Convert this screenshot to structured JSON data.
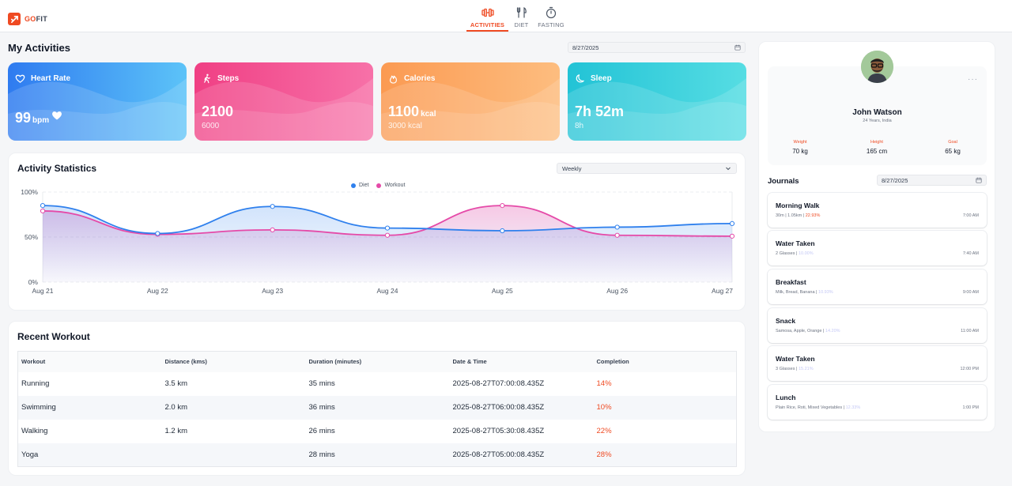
{
  "app": {
    "brand_prefix": "GO",
    "brand_suffix": "FIT"
  },
  "nav": {
    "tabs": [
      {
        "label": "ACTIVITIES",
        "icon": "dumbbell-icon",
        "active": true
      },
      {
        "label": "DIET",
        "icon": "fork-knife-icon",
        "active": false
      },
      {
        "label": "FASTING",
        "icon": "stopwatch-icon",
        "active": false
      }
    ]
  },
  "main": {
    "title": "My Activities",
    "date": "8/27/2025",
    "cards": [
      {
        "title": "Heart Rate",
        "value": "99",
        "unit": "bpm",
        "icon": "heart-outline-icon",
        "color": "#3b8ef5"
      },
      {
        "title": "Steps",
        "value": "2100",
        "sub": "6000",
        "icon": "walking-icon",
        "color": "#f1468b"
      },
      {
        "title": "Calories",
        "value": "1100",
        "unit": "kcal",
        "sub": "3000 kcal",
        "icon": "flame-icon",
        "color": "#fb9e5b"
      },
      {
        "title": "Sleep",
        "value": "7h 52m",
        "sub": "8h",
        "icon": "moon-icon",
        "color": "#26c7d8"
      }
    ]
  },
  "activity": {
    "title": "Activity Statistics",
    "period": "Weekly"
  },
  "chart_data": {
    "type": "area",
    "x": [
      "Aug 21",
      "Aug 22",
      "Aug 23",
      "Aug 24",
      "Aug 25",
      "Aug 26",
      "Aug 27"
    ],
    "y_ticks": [
      "100%",
      "50%",
      "0%"
    ],
    "ylim": [
      0,
      100
    ],
    "series": [
      {
        "name": "Diet",
        "color": "#2f80ed",
        "values": [
          85,
          54,
          84,
          60,
          57,
          61,
          65
        ]
      },
      {
        "name": "Workout",
        "color": "#e54aa8",
        "values": [
          79,
          53,
          58,
          52,
          85,
          52,
          51
        ]
      }
    ],
    "legend": "top-center",
    "grid": true
  },
  "workouts": {
    "title": "Recent Workout",
    "columns": [
      "Workout",
      "Distance (kms)",
      "Duration (minutes)",
      "Date & Time",
      "Completion"
    ],
    "rows": [
      [
        "Running",
        "3.5 km",
        "35 mins",
        "2025-08-27T07:00:08.435Z",
        "14%"
      ],
      [
        "Swimming",
        "2.0 km",
        "36 mins",
        "2025-08-27T06:00:08.435Z",
        "10%"
      ],
      [
        "Walking",
        "1.2 km",
        "26 mins",
        "2025-08-27T05:30:08.435Z",
        "22%"
      ],
      [
        "Yoga",
        "",
        "28 mins",
        "2025-08-27T05:00:08.435Z",
        "28%"
      ]
    ]
  },
  "profile": {
    "name": "John Watson",
    "meta": "24 Years, India",
    "more": "···",
    "stats": [
      {
        "label": "Weight",
        "value": "70 kg"
      },
      {
        "label": "Height",
        "value": "165 cm"
      },
      {
        "label": "Goal",
        "value": "65 kg"
      }
    ]
  },
  "journals": {
    "title": "Journals",
    "date": "8/27/2025",
    "items": [
      {
        "title": "Morning Walk",
        "detail": "30m | 1.05km | ",
        "highlight": "22.93%",
        "hl_style": "orange",
        "time": "7:00 AM"
      },
      {
        "title": "Water Taken",
        "detail": "2 Glasses | ",
        "highlight": "10.00%",
        "hl_style": "lavender",
        "time": "7:40 AM"
      },
      {
        "title": "Breakfast",
        "detail": "Milk, Bread, Banana | ",
        "highlight": "10.93%",
        "hl_style": "lavender",
        "time": "9:00 AM"
      },
      {
        "title": "Snack",
        "detail": "Samosa, Apple, Orange | ",
        "highlight": "14.20%",
        "hl_style": "lavender",
        "time": "11:00 AM"
      },
      {
        "title": "Water Taken",
        "detail": "3 Glasses | ",
        "highlight": "15.21%",
        "hl_style": "lavender",
        "time": "12:00 PM"
      },
      {
        "title": "Lunch",
        "detail": "Plain Rice, Roti, Mixed Vegetables | ",
        "highlight": "12.33%",
        "hl_style": "lavender",
        "time": "1:00 PM"
      }
    ]
  }
}
